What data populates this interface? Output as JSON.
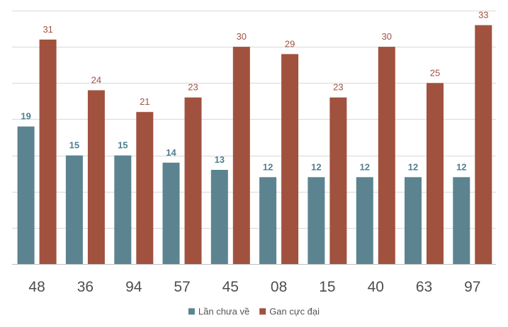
{
  "chart_data": {
    "type": "bar",
    "title": "",
    "xlabel": "",
    "ylabel": "",
    "ylim": [
      0,
      35
    ],
    "grid": true,
    "legend_position": "bottom",
    "categories": [
      "48",
      "36",
      "94",
      "57",
      "45",
      "08",
      "15",
      "40",
      "63",
      "97"
    ],
    "series": [
      {
        "name": "Lần chưa về",
        "color": "#5b8490",
        "label_color": "#4f7f8f",
        "values": [
          19,
          15,
          15,
          14,
          13,
          12,
          12,
          12,
          12,
          12
        ]
      },
      {
        "name": "Gan cực đại",
        "color": "#a0523f",
        "label_color": "#a0523f",
        "values": [
          31,
          24,
          21,
          23,
          30,
          29,
          23,
          30,
          25,
          33
        ]
      }
    ]
  }
}
